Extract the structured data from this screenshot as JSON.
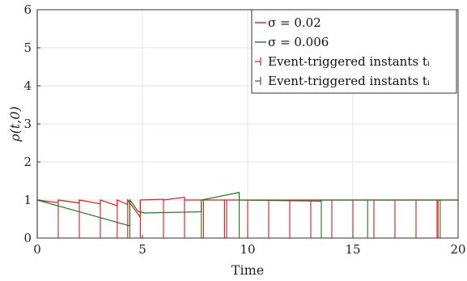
{
  "chart_data": {
    "type": "line",
    "xlabel": "Time",
    "ylabel": "ρ(t,0)",
    "xlim": [
      0,
      20
    ],
    "ylim": [
      0,
      6
    ],
    "x_ticks": [
      "0",
      "5",
      "10",
      "15",
      "20"
    ],
    "y_ticks": [
      "0",
      "1",
      "2",
      "3",
      "4",
      "5",
      "6"
    ],
    "grid": true,
    "legend_position": "top-right",
    "legend": [
      {
        "text": "σ = 0.02",
        "color": "#e31a1c",
        "kind": "line"
      },
      {
        "text": "σ = 0.006",
        "color": "#1b7a1b",
        "kind": "line"
      },
      {
        "text": "Event-triggered instants tᵢ",
        "color": "#e31a1c",
        "kind": "stem"
      },
      {
        "text": "Event-triggered instants tᵢ",
        "color": "#1b7a1b",
        "kind": "stem"
      }
    ],
    "series": [
      {
        "name": "σ = 0.02",
        "color": "#e31a1c",
        "points": [
          [
            0,
            1.0
          ],
          [
            1.0,
            0.93
          ],
          [
            1.0,
            1.0
          ],
          [
            2.0,
            0.92
          ],
          [
            2.0,
            1.0
          ],
          [
            3.0,
            0.9
          ],
          [
            3.0,
            1.0
          ],
          [
            3.8,
            0.85
          ],
          [
            3.8,
            1.0
          ],
          [
            4.3,
            0.88
          ],
          [
            4.3,
            1.0
          ],
          [
            4.9,
            0.55
          ],
          [
            4.9,
            1.0
          ],
          [
            6.0,
            1.02
          ],
          [
            6.0,
            1.0
          ],
          [
            7.0,
            1.07
          ],
          [
            7.0,
            1.0
          ],
          [
            7.9,
            1.0
          ],
          [
            20,
            1.0
          ]
        ]
      },
      {
        "name": "σ = 0.006",
        "color": "#1b7a1b",
        "points": [
          [
            0,
            1.0
          ],
          [
            4.4,
            0.32
          ],
          [
            4.4,
            1.0
          ],
          [
            4.8,
            0.7
          ],
          [
            5.1,
            0.66
          ],
          [
            7.8,
            0.69
          ],
          [
            7.8,
            1.0
          ],
          [
            9.6,
            1.2
          ],
          [
            9.6,
            1.0
          ],
          [
            13.5,
            0.97
          ],
          [
            13.5,
            1.0
          ],
          [
            20,
            1.0
          ]
        ]
      }
    ],
    "events": [
      {
        "name": "Event-triggered instants tᵢ",
        "color": "#e31a1c",
        "stems": [
          [
            1.0,
            1.0
          ],
          [
            2.0,
            1.0
          ],
          [
            3.0,
            1.0
          ],
          [
            3.8,
            1.0
          ],
          [
            4.3,
            1.0
          ],
          [
            4.9,
            1.0
          ],
          [
            6.0,
            1.0
          ],
          [
            7.0,
            1.0
          ],
          [
            7.9,
            1.0
          ],
          [
            8.9,
            1.0
          ],
          [
            9.0,
            1.0
          ],
          [
            10.0,
            1.0
          ],
          [
            11.0,
            1.0
          ],
          [
            12.0,
            1.0
          ],
          [
            13.0,
            1.0
          ],
          [
            14.0,
            1.0
          ],
          [
            15.0,
            1.0
          ],
          [
            16.0,
            1.0
          ],
          [
            17.0,
            1.0
          ],
          [
            18.0,
            1.0
          ],
          [
            19.0,
            1.0
          ],
          [
            19.05,
            1.0
          ]
        ]
      },
      {
        "name": "Event-triggered instants tᵢ",
        "color": "#1b7a1b",
        "stems": [
          [
            0.0,
            6.0
          ],
          [
            4.4,
            1.0
          ],
          [
            7.8,
            1.0
          ],
          [
            9.6,
            1.0
          ],
          [
            13.5,
            1.0
          ],
          [
            15.7,
            1.0
          ],
          [
            19.15,
            1.0
          ]
        ]
      }
    ]
  }
}
